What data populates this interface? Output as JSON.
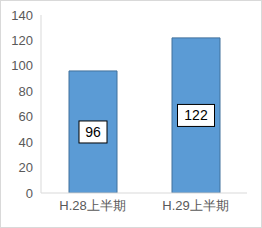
{
  "chart_data": {
    "type": "bar",
    "categories": [
      "H.28上半期",
      "H.29上半期"
    ],
    "values": [
      96,
      122
    ],
    "color": "#5b9bd5",
    "ylim": [
      0,
      140
    ],
    "yticks": [
      0,
      20,
      40,
      60,
      80,
      100,
      120,
      140
    ],
    "grid": false,
    "data_labels": true
  }
}
